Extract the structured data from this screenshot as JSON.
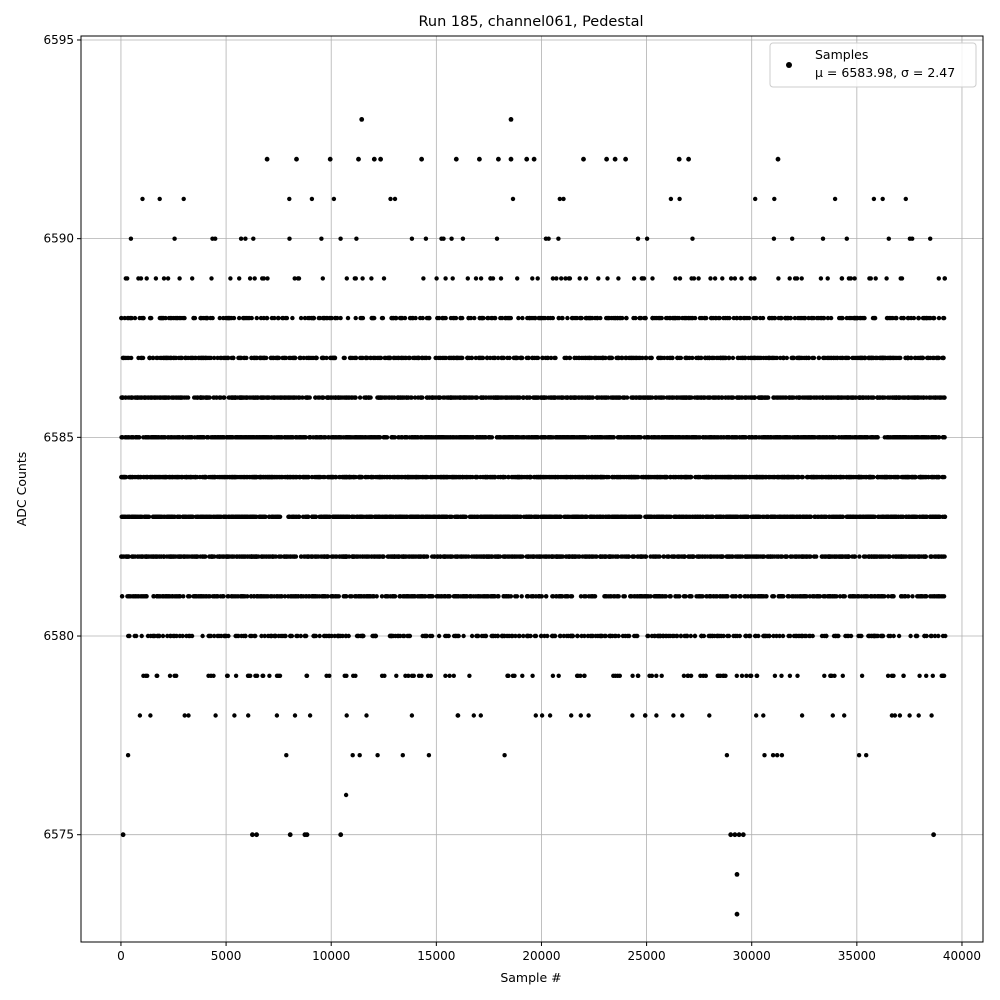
{
  "chart_data": {
    "type": "scatter",
    "title": "Run 185, channel061, Pedestal",
    "xlabel": "Sample #",
    "ylabel": "ADC Counts",
    "xlim": [
      -1900,
      41000
    ],
    "ylim": [
      6572.3,
      6595.1
    ],
    "x_ticks": [
      0,
      5000,
      10000,
      15000,
      20000,
      25000,
      30000,
      35000,
      40000
    ],
    "x_tick_labels": [
      "0",
      "5000",
      "10000",
      "15000",
      "20000",
      "25000",
      "30000",
      "35000",
      "40000"
    ],
    "y_ticks": [
      6575,
      6580,
      6585,
      6590,
      6595
    ],
    "y_tick_labels": [
      "6575",
      "6580",
      "6585",
      "6590",
      "6595"
    ],
    "grid": true,
    "legend": {
      "placement": "top-right",
      "series_label": "Samples",
      "stats_label": "μ = 6583.98, σ = 2.47"
    },
    "marker_color": "#000000",
    "series": [
      {
        "name": "Samples",
        "x_range": [
          0,
          39200
        ],
        "n_points": 39200,
        "mean": 6583.98,
        "sigma": 2.47,
        "discrete_values": [
          6573,
          6574,
          6575,
          6576,
          6577,
          6578,
          6579,
          6580,
          6581,
          6582,
          6583,
          6584,
          6585,
          6586,
          6587,
          6588,
          6589,
          6590,
          6591,
          6592,
          6593
        ],
        "outliers": [
          {
            "x": 11450,
            "y": 6593
          },
          {
            "x": 18550,
            "y": 6593
          },
          {
            "x": 29300,
            "y": 6574
          },
          {
            "x": 29300,
            "y": 6573
          },
          {
            "x": 100,
            "y": 6575
          },
          {
            "x": 6250,
            "y": 6575
          },
          {
            "x": 6450,
            "y": 6575
          },
          {
            "x": 8050,
            "y": 6575
          },
          {
            "x": 8750,
            "y": 6575
          },
          {
            "x": 8850,
            "y": 6575
          },
          {
            "x": 10450,
            "y": 6575
          },
          {
            "x": 29000,
            "y": 6575
          },
          {
            "x": 29200,
            "y": 6575
          },
          {
            "x": 29400,
            "y": 6575
          },
          {
            "x": 29600,
            "y": 6575
          },
          {
            "x": 38650,
            "y": 6575
          },
          {
            "x": 6950,
            "y": 6592
          },
          {
            "x": 8350,
            "y": 6592
          },
          {
            "x": 9950,
            "y": 6592
          },
          {
            "x": 11300,
            "y": 6592
          },
          {
            "x": 12050,
            "y": 6592
          },
          {
            "x": 12350,
            "y": 6592
          },
          {
            "x": 14300,
            "y": 6592
          },
          {
            "x": 15950,
            "y": 6592
          },
          {
            "x": 17050,
            "y": 6592
          },
          {
            "x": 17950,
            "y": 6592
          },
          {
            "x": 18550,
            "y": 6592
          },
          {
            "x": 19300,
            "y": 6592
          },
          {
            "x": 19650,
            "y": 6592
          },
          {
            "x": 22000,
            "y": 6592
          },
          {
            "x": 23100,
            "y": 6592
          },
          {
            "x": 23500,
            "y": 6592
          },
          {
            "x": 24000,
            "y": 6592
          },
          {
            "x": 26550,
            "y": 6592
          },
          {
            "x": 27000,
            "y": 6592
          },
          {
            "x": 31250,
            "y": 6592
          }
        ]
      }
    ]
  }
}
